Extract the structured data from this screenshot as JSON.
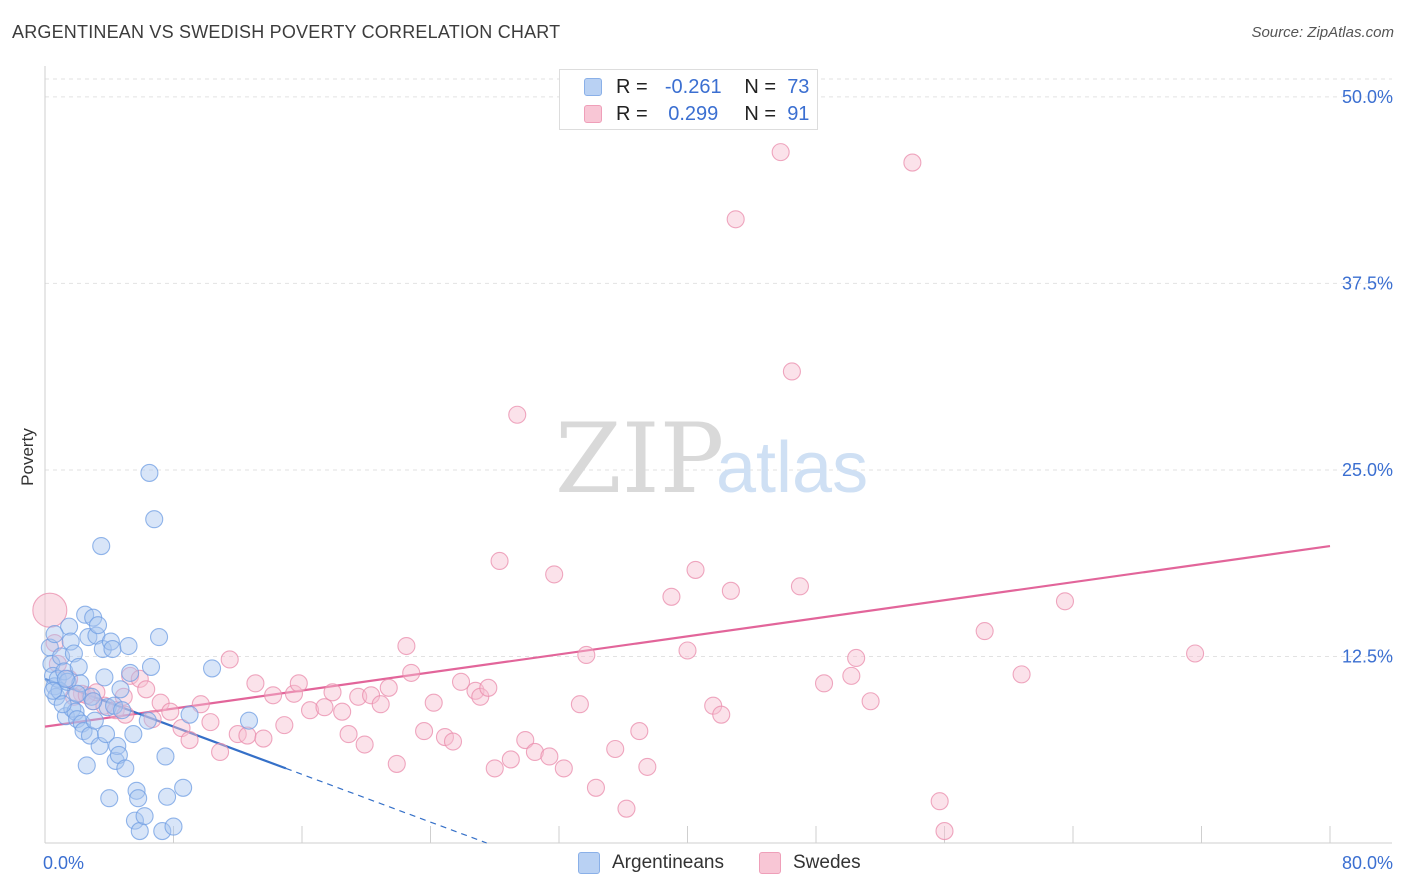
{
  "header": {
    "title": "ARGENTINEAN VS SWEDISH POVERTY CORRELATION CHART",
    "source": "Source: ZipAtlas.com"
  },
  "legend_top": {
    "rows": [
      {
        "r_label": "R =",
        "r_value": "-0.261",
        "n_label": "N =",
        "n_value": "73"
      },
      {
        "r_label": "R =",
        "r_value": "0.299",
        "n_label": "N =",
        "n_value": "91"
      }
    ]
  },
  "legend_bottom": {
    "items": [
      "Argentineans",
      "Swedes"
    ]
  },
  "watermark": {
    "part1": "ZIP",
    "part2": "atlas"
  },
  "colors": {
    "blue_fill": "#a9c6f0",
    "blue_stroke": "#6f9de3",
    "blue_line": "#3570c8",
    "pink_fill": "#f6bfd0",
    "pink_stroke": "#ea8bab",
    "pink_line": "#e2659a",
    "axis_text": "#3b6fd1",
    "grid": "#e2e2e2"
  },
  "chart_data": {
    "type": "scatter",
    "title": "ARGENTINEAN VS SWEDISH POVERTY CORRELATION CHART",
    "xlabel": "",
    "ylabel": "Poverty",
    "xlim": [
      0,
      80
    ],
    "ylim": [
      0,
      50
    ],
    "x_tick_labels": [
      "0.0%",
      "80.0%"
    ],
    "y_ticks": [
      12.5,
      25.0,
      37.5,
      50.0
    ],
    "y_tick_labels": [
      "12.5%",
      "25.0%",
      "37.5%",
      "50.0%"
    ],
    "grid": true,
    "legend_position": "top-center",
    "series": [
      {
        "name": "Argentineans",
        "r": -0.261,
        "n": 73,
        "trend": {
          "x0": 0,
          "y0": 11.0,
          "x1": 15,
          "y1": 5.0,
          "dashed_to_x": 27.5
        },
        "points": [
          [
            0.3,
            13.1
          ],
          [
            0.4,
            12.0
          ],
          [
            0.5,
            11.2
          ],
          [
            0.6,
            10.5
          ],
          [
            0.7,
            9.8
          ],
          [
            0.8,
            11.0
          ],
          [
            0.9,
            10.2
          ],
          [
            1.0,
            12.5
          ],
          [
            1.2,
            11.5
          ],
          [
            1.3,
            8.5
          ],
          [
            1.4,
            10.8
          ],
          [
            1.5,
            14.5
          ],
          [
            1.6,
            13.5
          ],
          [
            1.7,
            9.0
          ],
          [
            1.8,
            12.7
          ],
          [
            1.9,
            8.8
          ],
          [
            2.0,
            8.3
          ],
          [
            2.1,
            11.8
          ],
          [
            2.2,
            10.7
          ],
          [
            2.3,
            8.0
          ],
          [
            2.4,
            7.5
          ],
          [
            2.5,
            15.3
          ],
          [
            2.6,
            5.2
          ],
          [
            2.7,
            13.8
          ],
          [
            2.8,
            7.2
          ],
          [
            2.9,
            9.8
          ],
          [
            3.0,
            15.1
          ],
          [
            3.1,
            8.2
          ],
          [
            3.2,
            13.9
          ],
          [
            3.3,
            14.6
          ],
          [
            3.4,
            6.5
          ],
          [
            3.5,
            19.9
          ],
          [
            3.6,
            13.0
          ],
          [
            3.7,
            11.1
          ],
          [
            3.8,
            7.3
          ],
          [
            3.9,
            9.1
          ],
          [
            4.0,
            3.0
          ],
          [
            4.1,
            13.5
          ],
          [
            4.2,
            13.0
          ],
          [
            4.3,
            9.2
          ],
          [
            4.4,
            5.5
          ],
          [
            4.5,
            6.5
          ],
          [
            4.6,
            5.9
          ],
          [
            4.7,
            10.3
          ],
          [
            4.8,
            8.9
          ],
          [
            5.0,
            5.0
          ],
          [
            5.2,
            13.2
          ],
          [
            5.3,
            11.4
          ],
          [
            5.5,
            7.3
          ],
          [
            5.6,
            1.5
          ],
          [
            5.7,
            3.5
          ],
          [
            5.8,
            3.0
          ],
          [
            5.9,
            0.8
          ],
          [
            6.2,
            1.8
          ],
          [
            6.4,
            8.2
          ],
          [
            6.5,
            24.8
          ],
          [
            6.6,
            11.8
          ],
          [
            6.8,
            21.7
          ],
          [
            7.1,
            13.8
          ],
          [
            7.3,
            0.8
          ],
          [
            7.5,
            5.8
          ],
          [
            7.6,
            3.1
          ],
          [
            8.0,
            1.1
          ],
          [
            8.6,
            3.7
          ],
          [
            9.0,
            8.6
          ],
          [
            10.4,
            11.7
          ],
          [
            12.7,
            8.2
          ],
          [
            0.5,
            10.2
          ],
          [
            1.1,
            9.3
          ],
          [
            2.0,
            10.0
          ],
          [
            3.0,
            9.5
          ],
          [
            0.6,
            14.0
          ],
          [
            1.3,
            11.0
          ]
        ]
      },
      {
        "name": "Swedes",
        "r": 0.299,
        "n": 91,
        "trend": {
          "x0": 0,
          "y0": 7.8,
          "x1": 80,
          "y1": 19.9
        },
        "points": [
          [
            0.3,
            15.6
          ],
          [
            0.8,
            12.0
          ],
          [
            1.5,
            11.0
          ],
          [
            2.3,
            10.0
          ],
          [
            3.0,
            9.5
          ],
          [
            3.7,
            9.2
          ],
          [
            4.4,
            8.9
          ],
          [
            4.9,
            9.8
          ],
          [
            5.3,
            11.2
          ],
          [
            5.9,
            11.0
          ],
          [
            6.3,
            10.3
          ],
          [
            6.7,
            8.3
          ],
          [
            7.2,
            9.4
          ],
          [
            7.8,
            8.8
          ],
          [
            8.5,
            7.7
          ],
          [
            9.0,
            6.9
          ],
          [
            9.7,
            9.3
          ],
          [
            10.3,
            8.1
          ],
          [
            10.9,
            6.1
          ],
          [
            11.5,
            12.3
          ],
          [
            12.0,
            7.3
          ],
          [
            12.6,
            7.2
          ],
          [
            13.1,
            10.7
          ],
          [
            13.6,
            7.0
          ],
          [
            14.2,
            9.9
          ],
          [
            14.9,
            7.9
          ],
          [
            15.5,
            10.0
          ],
          [
            15.8,
            10.7
          ],
          [
            16.5,
            8.9
          ],
          [
            17.4,
            9.1
          ],
          [
            17.9,
            10.1
          ],
          [
            18.5,
            8.8
          ],
          [
            18.9,
            7.3
          ],
          [
            19.5,
            9.8
          ],
          [
            19.9,
            6.6
          ],
          [
            20.3,
            9.9
          ],
          [
            20.9,
            9.3
          ],
          [
            21.4,
            10.4
          ],
          [
            21.9,
            5.3
          ],
          [
            22.5,
            13.2
          ],
          [
            22.8,
            11.4
          ],
          [
            23.6,
            7.5
          ],
          [
            24.2,
            9.4
          ],
          [
            24.9,
            7.1
          ],
          [
            25.4,
            6.8
          ],
          [
            25.9,
            10.8
          ],
          [
            26.8,
            10.2
          ],
          [
            27.1,
            9.8
          ],
          [
            27.6,
            10.4
          ],
          [
            28.0,
            5.0
          ],
          [
            28.3,
            18.9
          ],
          [
            29.0,
            5.6
          ],
          [
            29.4,
            28.7
          ],
          [
            29.9,
            6.9
          ],
          [
            30.5,
            6.1
          ],
          [
            31.4,
            5.8
          ],
          [
            31.7,
            18.0
          ],
          [
            32.3,
            5.0
          ],
          [
            33.3,
            9.3
          ],
          [
            33.7,
            12.6
          ],
          [
            34.3,
            3.7
          ],
          [
            35.5,
            6.3
          ],
          [
            36.2,
            2.3
          ],
          [
            37.0,
            7.5
          ],
          [
            37.5,
            5.1
          ],
          [
            39.0,
            16.5
          ],
          [
            40.0,
            12.9
          ],
          [
            40.5,
            18.3
          ],
          [
            41.6,
            9.2
          ],
          [
            42.1,
            8.6
          ],
          [
            42.7,
            16.9
          ],
          [
            43.0,
            41.8
          ],
          [
            45.8,
            46.3
          ],
          [
            46.5,
            31.6
          ],
          [
            47.0,
            17.2
          ],
          [
            48.5,
            10.7
          ],
          [
            50.2,
            11.2
          ],
          [
            50.5,
            12.4
          ],
          [
            51.4,
            9.5
          ],
          [
            54.0,
            45.6
          ],
          [
            55.7,
            2.8
          ],
          [
            56.0,
            0.8
          ],
          [
            58.5,
            14.2
          ],
          [
            60.8,
            11.3
          ],
          [
            63.5,
            16.2
          ],
          [
            71.6,
            12.7
          ],
          [
            0.6,
            13.4
          ],
          [
            1.8,
            9.8
          ],
          [
            3.2,
            10.1
          ],
          [
            5.0,
            8.6
          ],
          [
            2.6,
            9.9
          ]
        ]
      }
    ]
  }
}
